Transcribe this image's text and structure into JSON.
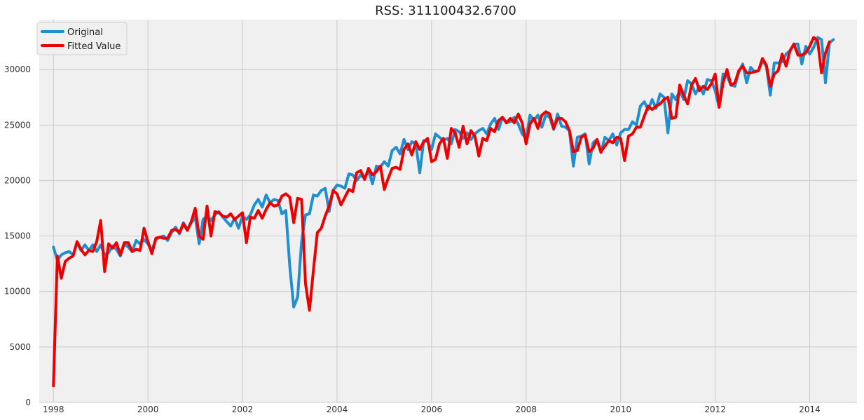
{
  "chart_data": {
    "type": "line",
    "title": "RSS: 311100432.6700",
    "xlabel": "",
    "ylabel": "",
    "xlim": [
      1997.7,
      2015.0
    ],
    "ylim": [
      0,
      34500
    ],
    "x_ticks": [
      1998,
      2000,
      2002,
      2004,
      2006,
      2008,
      2010,
      2012,
      2014
    ],
    "x_tick_labels": [
      "1998",
      "2000",
      "2002",
      "2004",
      "2006",
      "2008",
      "2010",
      "2012",
      "2014"
    ],
    "y_ticks": [
      0,
      5000,
      10000,
      15000,
      20000,
      25000,
      30000
    ],
    "y_tick_labels": [
      "0",
      "5000",
      "10000",
      "15000",
      "20000",
      "25000",
      "30000"
    ],
    "grid": true,
    "legend_position": "top-left",
    "background_color": "#f0f0f0",
    "series": [
      {
        "name": "Original",
        "color": "#1f8fd0",
        "values": [
          14000,
          12800,
          13300,
          13500,
          13600,
          13300,
          14400,
          13700,
          14200,
          13700,
          14200,
          13600,
          14200,
          13300,
          13500,
          14100,
          13800,
          13200,
          14300,
          14000,
          13600,
          14600,
          14300,
          14700,
          14300,
          13700,
          14700,
          14900,
          15000,
          14600,
          15300,
          15800,
          15200,
          16200,
          15600,
          16200,
          16700,
          14300,
          16500,
          16800,
          16400,
          16900,
          17200,
          16700,
          16300,
          15900,
          16600,
          15700,
          16800,
          16500,
          16900,
          17800,
          18300,
          17600,
          18700,
          18000,
          18300,
          18200,
          17000,
          17300,
          12300,
          8600,
          9500,
          14500,
          16900,
          17000,
          18700,
          18600,
          19100,
          19300,
          17200,
          19100,
          19600,
          19500,
          19300,
          20600,
          20500,
          20000,
          20500,
          20200,
          20900,
          19700,
          21300,
          21200,
          21700,
          21300,
          22700,
          23000,
          22400,
          23700,
          22800,
          23500,
          23300,
          20700,
          23600,
          23500,
          22800,
          24200,
          23900,
          23600,
          23800,
          23300,
          24600,
          24400,
          23800,
          24300,
          23700,
          24200,
          24500,
          24700,
          24200,
          25100,
          25600,
          24600,
          25700,
          25200,
          25300,
          25700,
          25100,
          24200,
          23800,
          25900,
          25400,
          25900,
          24800,
          25900,
          25700,
          24600,
          26000,
          24900,
          24800,
          24500,
          21300,
          23900,
          24000,
          24200,
          21500,
          23400,
          23700,
          22500,
          23900,
          23600,
          24200,
          23200,
          24300,
          24600,
          24600,
          25300,
          25000,
          26700,
          27100,
          26400,
          27300,
          26500,
          27800,
          27500,
          24300,
          27800,
          27300,
          28100,
          27300,
          29000,
          28700,
          27800,
          28500,
          27800,
          29100,
          29000,
          28100,
          26600,
          29600,
          29400,
          28600,
          28500,
          29800,
          30500,
          28800,
          30200,
          29800,
          29900,
          30800,
          30300,
          27700,
          30600,
          30600,
          30700,
          31400,
          31700,
          32300,
          32300,
          30500,
          32100,
          31400,
          32000,
          32900,
          32700,
          28800,
          32400,
          32700
        ]
      },
      {
        "name": "Fitted Value",
        "color": "#ee0000",
        "values": [
          1500,
          13200,
          11200,
          12700,
          13000,
          13200,
          14500,
          13800,
          13300,
          13700,
          13600,
          14500,
          16400,
          11800,
          14300,
          13900,
          14400,
          13300,
          14400,
          14400,
          13600,
          13800,
          13700,
          15700,
          14500,
          13400,
          14800,
          14900,
          14800,
          14800,
          15500,
          15600,
          15300,
          16100,
          15500,
          16300,
          17500,
          15000,
          14700,
          17700,
          15000,
          17200,
          17100,
          16800,
          16700,
          17000,
          16500,
          16800,
          17100,
          14400,
          16700,
          16600,
          17300,
          16600,
          17400,
          18000,
          17700,
          17800,
          18600,
          18800,
          18500,
          16200,
          18400,
          18300,
          10700,
          8300,
          11900,
          15300,
          15700,
          16800,
          17700,
          19100,
          18800,
          17800,
          18500,
          19200,
          19000,
          20700,
          20900,
          20100,
          21100,
          20500,
          20800,
          21300,
          19200,
          20200,
          21100,
          21200,
          21000,
          22800,
          23300,
          22300,
          23500,
          22800,
          23500,
          23800,
          21700,
          21900,
          23300,
          23800,
          22000,
          24700,
          24300,
          23000,
          24900,
          23300,
          24500,
          24000,
          22200,
          23800,
          23600,
          24700,
          24400,
          25400,
          25700,
          25200,
          25600,
          25200,
          26000,
          25200,
          23300,
          25100,
          25600,
          24700,
          25900,
          26200,
          26000,
          24700,
          25600,
          25600,
          25300,
          24500,
          22600,
          22700,
          23900,
          24100,
          22600,
          22900,
          23700,
          22600,
          23100,
          23600,
          23400,
          23900,
          23800,
          21800,
          24000,
          24200,
          24800,
          24800,
          25800,
          26700,
          26400,
          26700,
          26900,
          27300,
          27500,
          25600,
          25700,
          28600,
          27700,
          26900,
          28600,
          29200,
          28100,
          28500,
          28200,
          28700,
          29600,
          26600,
          28800,
          30000,
          28600,
          28800,
          29900,
          30300,
          29700,
          29700,
          29800,
          29900,
          31000,
          30400,
          28500,
          29600,
          29900,
          31400,
          30300,
          31700,
          32300,
          31300,
          31300,
          31500,
          32100,
          32900,
          32600,
          29700,
          31500,
          32500
        ]
      }
    ]
  }
}
